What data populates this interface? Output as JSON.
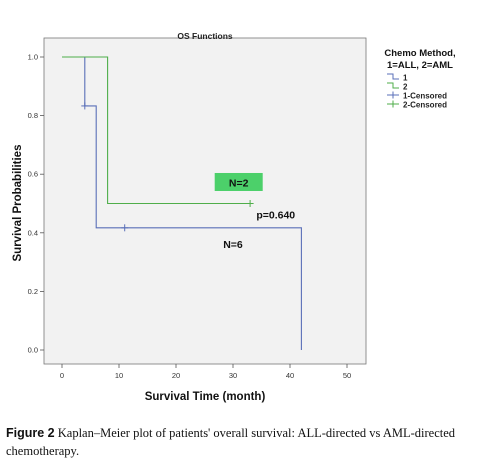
{
  "chart_data": {
    "type": "line",
    "subtype": "kaplan-meier",
    "title": "OS Functions",
    "xlabel": "Survival Time (month)",
    "ylabel": "Survival Probabilities",
    "xlim": [
      0,
      50
    ],
    "ylim": [
      0.0,
      1.0
    ],
    "x_ticks": [
      0,
      10,
      20,
      30,
      40,
      50
    ],
    "y_ticks": [
      0.0,
      0.2,
      0.4,
      0.6,
      0.8,
      1.0
    ],
    "x_tick_labels": [
      "0",
      "10",
      "20",
      "30",
      "40",
      "50"
    ],
    "y_tick_labels": [
      "0.0",
      "0.2",
      "0.4",
      "0.6",
      "0.8",
      "1.0"
    ],
    "grid": false,
    "legend": {
      "title": "Chemo Method, 1=ALL, 2=AML",
      "title_lines": [
        "Chemo Method,",
        "1=ALL, 2=AML"
      ],
      "placement": "right",
      "entries": [
        {
          "label": "1",
          "symbol": "step",
          "color": "#5a6fb8"
        },
        {
          "label": "2",
          "symbol": "step",
          "color": "#4fae4a"
        },
        {
          "label": "1-Censored",
          "symbol": "plus",
          "color": "#5a6fb8"
        },
        {
          "label": "2-Censored",
          "symbol": "plus",
          "color": "#4fae4a"
        }
      ]
    },
    "series": [
      {
        "name": "1",
        "color": "#5a6fb8",
        "steps": [
          [
            0,
            1.0
          ],
          [
            4,
            0.833
          ],
          [
            6,
            0.417
          ],
          [
            42,
            0.0
          ]
        ],
        "end_x": 42,
        "censored": [
          [
            4,
            0.833
          ],
          [
            11,
            0.417
          ]
        ]
      },
      {
        "name": "2",
        "color": "#4fae4a",
        "steps": [
          [
            0,
            1.0
          ],
          [
            8,
            0.5
          ]
        ],
        "end_x": 33,
        "censored": [
          [
            33,
            0.5
          ]
        ]
      }
    ],
    "annotations": [
      {
        "text": "N=2",
        "x": 31,
        "y": 0.57,
        "highlight": "#4cd06a"
      },
      {
        "text": "p=0.640",
        "x": 37.5,
        "y": 0.46
      },
      {
        "text": "N=6",
        "x": 30,
        "y": 0.36
      }
    ],
    "plot_background": "#f2f2f2"
  },
  "caption": {
    "label": "Figure 2",
    "text": " Kaplan–Meier plot of patients' overall survival: ALL-directed vs AML-directed chemotherapy."
  }
}
